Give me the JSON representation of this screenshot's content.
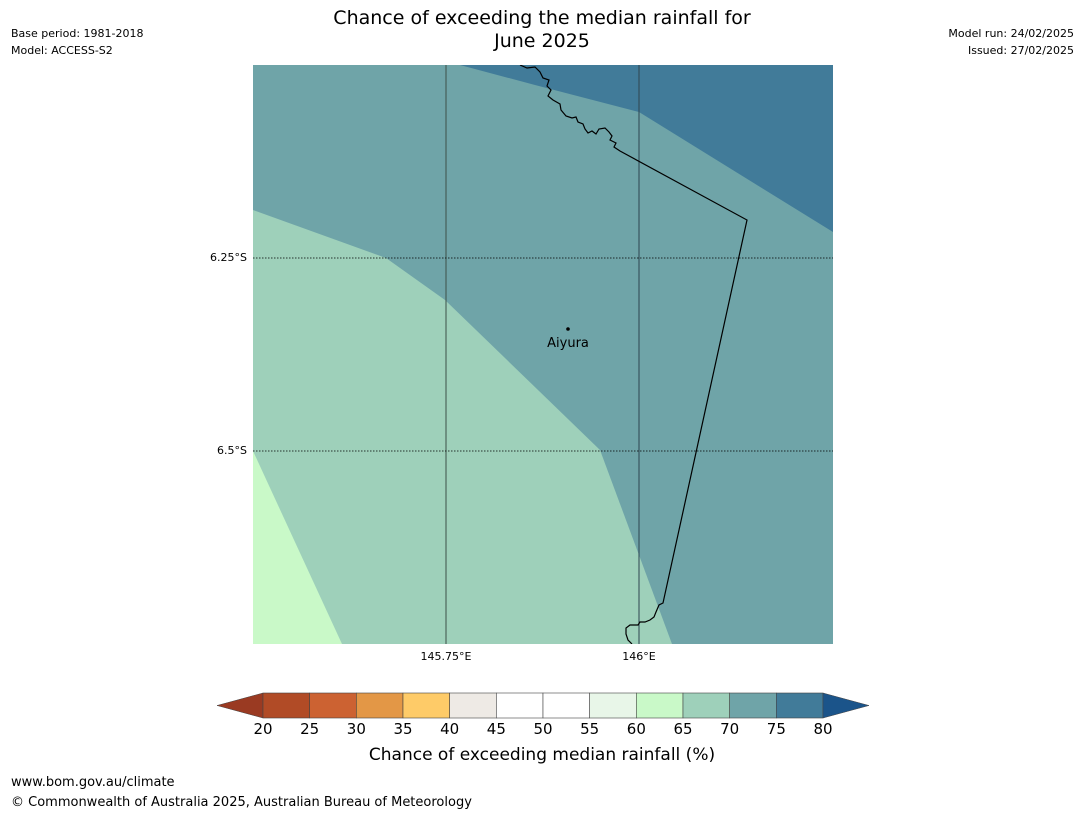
{
  "header": {
    "title_line1": "Chance of exceeding the median rainfall for",
    "title_line2": "June 2025",
    "base_period": "Base period: 1981-2018",
    "model": "Model: ACCESS-S2",
    "model_run": "Model run: 24/02/2025",
    "issued": "Issued: 27/02/2025"
  },
  "map": {
    "lat_labels": [
      "6.25°S",
      "6.5°S"
    ],
    "lon_labels": [
      "145.75°E",
      "146°E"
    ],
    "place": "Aiyura",
    "region_colors": {
      "c60_65": "#c9f9c8",
      "c65_70": "#9ed0ba",
      "c70_75": "#6fa4a8",
      "c75_80": "#417b99"
    }
  },
  "colorbar": {
    "ticks": [
      "20",
      "25",
      "30",
      "35",
      "40",
      "45",
      "50",
      "55",
      "60",
      "65",
      "70",
      "75",
      "80"
    ],
    "colors": [
      "#b14b26",
      "#cc6232",
      "#e39746",
      "#fecb68",
      "#eeeae5",
      "#ffffff",
      "#ffffff",
      "#e8f6e8",
      "#c9f9c8",
      "#9ed0ba",
      "#6fa4a8",
      "#417b99"
    ],
    "under_color": "#9a3a22",
    "over_color": "#1b548a",
    "label": "Chance of exceeding median rainfall (%)"
  },
  "footer": {
    "url": "www.bom.gov.au/climate",
    "copyright": "© Commonwealth of Australia 2025, Australian Bureau of Meteorology"
  }
}
